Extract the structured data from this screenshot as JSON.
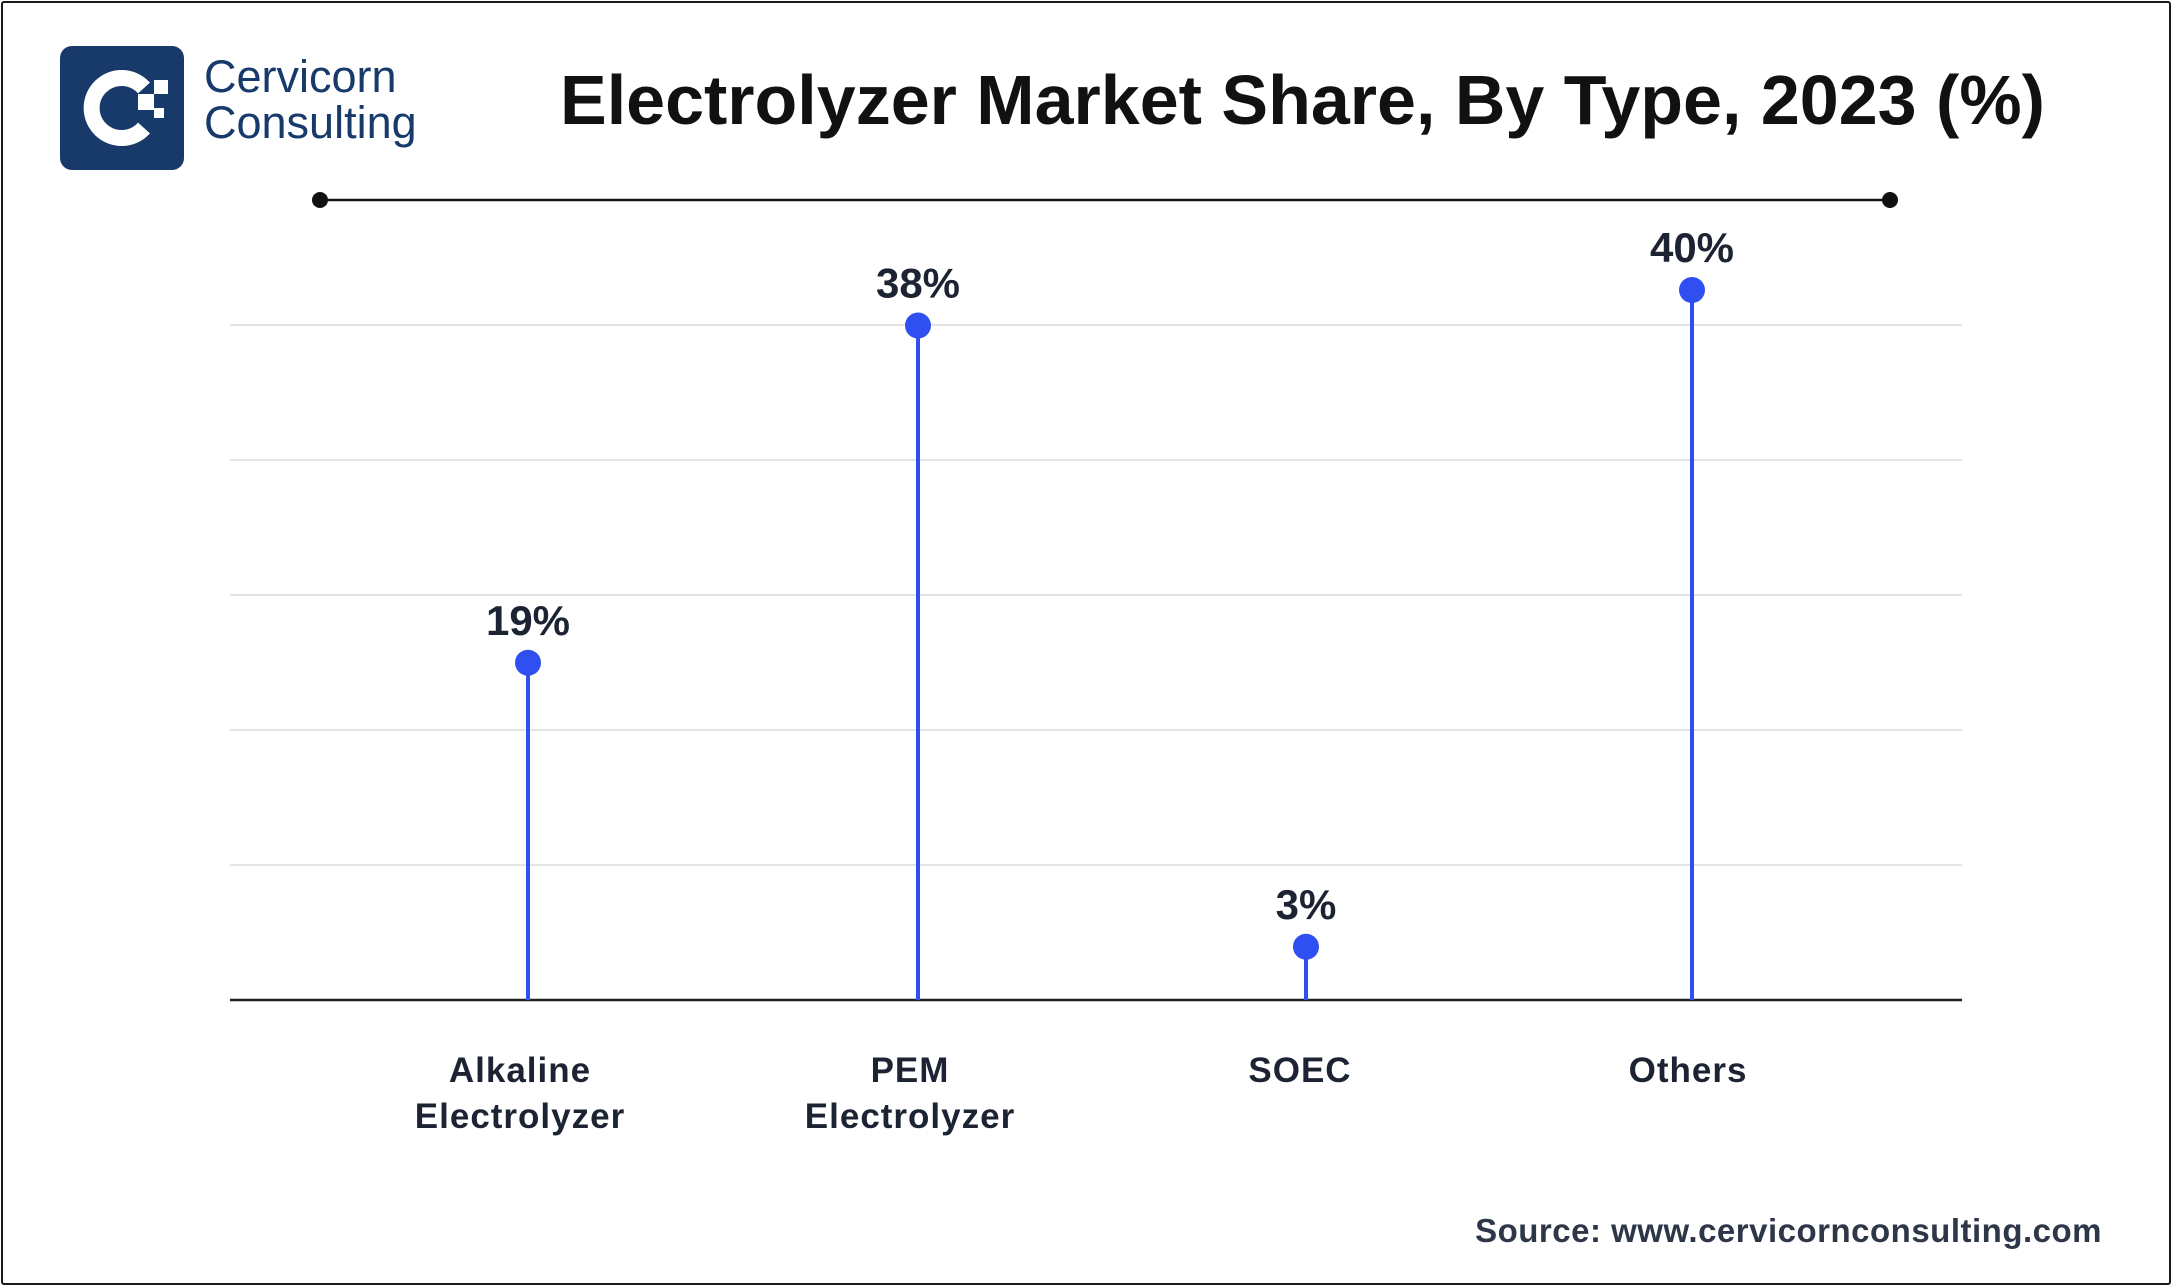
{
  "logo": {
    "line1": "Cervicorn",
    "line2": "Consulting"
  },
  "source": "Source: www.cervicornconsulting.com",
  "colors": {
    "accent": "#2f4ff0",
    "logo_bg": "#173a6b",
    "grid": "#e4e4e4",
    "axis": "#222222",
    "text": "#1c2333"
  },
  "chart_data": {
    "type": "lollipop",
    "title": "Electrolyzer Market Share, By Type, 2023 (%)",
    "categories": [
      [
        "Alkaline",
        "Electrolyzer"
      ],
      [
        "PEM",
        "Electrolyzer"
      ],
      [
        "SOEC"
      ],
      [
        "Others"
      ]
    ],
    "values": [
      19,
      38,
      3,
      40
    ],
    "value_labels": [
      "19%",
      "38%",
      "3%",
      "40%"
    ],
    "ylim": [
      0,
      42
    ],
    "grid": true,
    "gridline_count": 5,
    "legend": "none"
  }
}
